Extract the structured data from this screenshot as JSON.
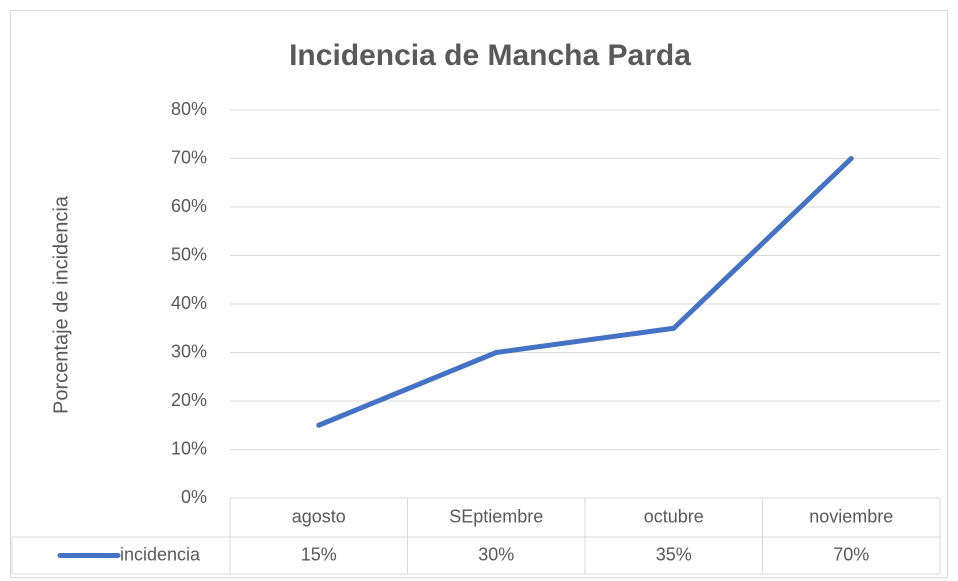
{
  "chart_data": {
    "type": "line",
    "title": "Incidencia de Mancha Parda",
    "y_label": "Porcentaje de incidencia",
    "categories": [
      "agosto",
      "SEptiembre",
      "octubre",
      "noviembre"
    ],
    "series": [
      {
        "name": "incidencia",
        "color": "#4472c4",
        "values": [
          15,
          30,
          35,
          70
        ],
        "value_labels": [
          "15%",
          "30%",
          "35%",
          "70%"
        ]
      }
    ],
    "ylim": [
      0,
      80
    ],
    "yticks": [
      {
        "value": 0,
        "label": "0%"
      },
      {
        "value": 10,
        "label": "10%"
      },
      {
        "value": 20,
        "label": "20%"
      },
      {
        "value": 30,
        "label": "30%"
      },
      {
        "value": 40,
        "label": "40%"
      },
      {
        "value": 50,
        "label": "50%"
      },
      {
        "value": 60,
        "label": "60%"
      },
      {
        "value": 70,
        "label": "70%"
      },
      {
        "value": 80,
        "label": "80%"
      }
    ],
    "grid": true,
    "data_table": true
  }
}
